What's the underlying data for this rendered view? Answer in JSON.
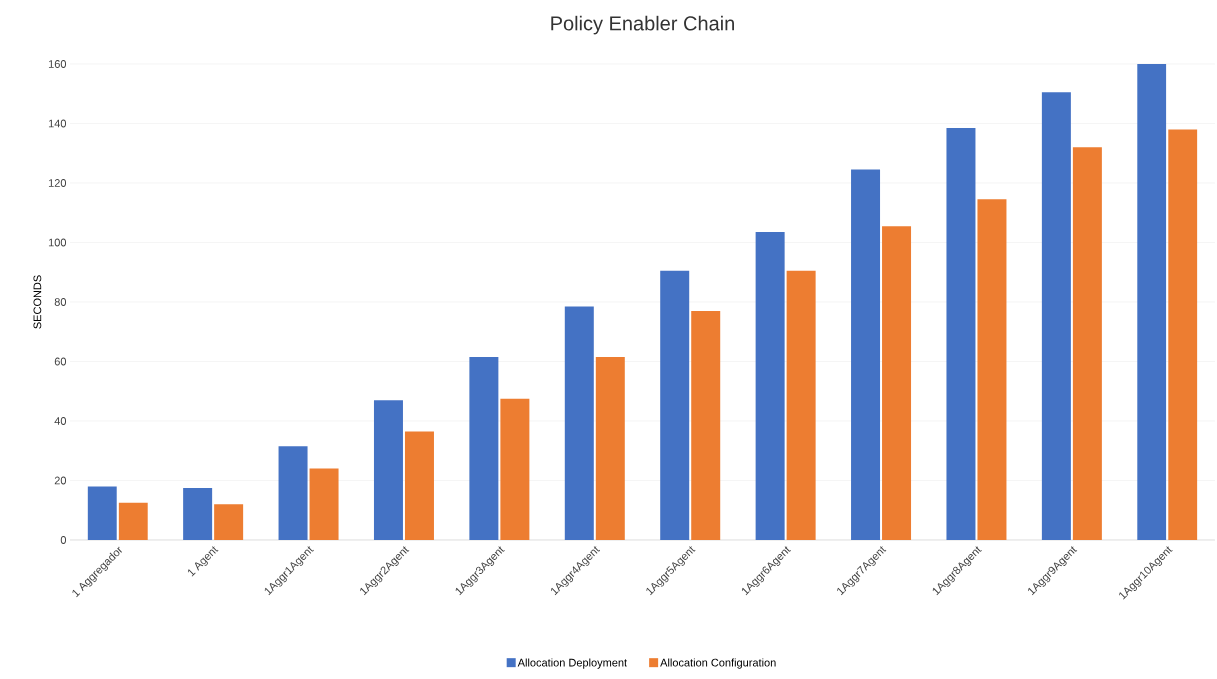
{
  "chart_data": {
    "type": "bar",
    "title": "Policy Enabler Chain",
    "ylabel": "SECONDS",
    "categories": [
      "1 Aggregador",
      "1 Agent",
      "1Aggr1Agent",
      "1Aggr2Agent",
      "1Aggr3Agent",
      "1Aggr4Agent",
      "1Aggr5Agent",
      "1Aggr6Agent",
      "1Aggr7Agent",
      "1Aggr8Agent",
      "1Aggr9Agent",
      "1Aggr10Agent"
    ],
    "series": [
      {
        "name": "Allocation Deployment",
        "color": "#4472c4",
        "values": [
          18,
          17.5,
          31.5,
          47,
          61.5,
          78.5,
          90.5,
          103.5,
          124.5,
          138.5,
          150.5,
          160
        ]
      },
      {
        "name": "Allocation Configuration",
        "color": "#ed7d31",
        "values": [
          12.5,
          12,
          24,
          36.5,
          47.5,
          61.5,
          77,
          90.5,
          105.5,
          114.5,
          132,
          138
        ]
      }
    ],
    "ylim": [
      0,
      160
    ],
    "yticks": [
      0,
      20,
      40,
      60,
      80,
      100,
      120,
      140,
      160
    ],
    "grid": "y",
    "legend": "bottom"
  }
}
